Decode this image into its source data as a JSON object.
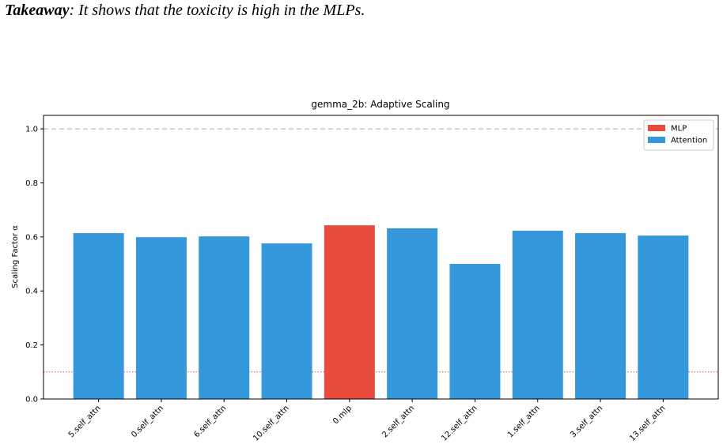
{
  "takeaway": {
    "label": "Takeaway",
    "text": ": It shows that the toxicity is high in the MLPs."
  },
  "chart_data": {
    "type": "bar",
    "title": "gemma_2b: Adaptive Scaling",
    "y_label": "Scaling Factor α",
    "categories": [
      "5.self_attn",
      "0.self_attn",
      "6.self_attn",
      "10.self_attn",
      "0.mlp",
      "2.self_attn",
      "12.self_attn",
      "1.self_attn",
      "3.self_attn",
      "13.self_attn"
    ],
    "series": [
      {
        "name": "MLP",
        "color": "#e74c3c",
        "values": [
          null,
          null,
          null,
          null,
          0.643,
          null,
          null,
          null,
          null,
          null
        ]
      },
      {
        "name": "Attention",
        "color": "#3498db",
        "values": [
          0.614,
          0.599,
          0.602,
          0.576,
          null,
          0.632,
          0.5,
          0.623,
          0.614,
          0.605
        ]
      }
    ],
    "ylim": [
      0,
      1.05
    ],
    "yticks": [
      {
        "value": 0,
        "label": "0.0"
      },
      0.2,
      0.4,
      0.6,
      0.8,
      {
        "value": 1,
        "label": "1.0"
      }
    ],
    "hlines": [
      {
        "value": 1,
        "color": "#b0b0b0",
        "style": "dashed"
      },
      {
        "value": 0.1,
        "color": "#e74c3c",
        "style": "dotted"
      }
    ],
    "legend": "upper right"
  }
}
